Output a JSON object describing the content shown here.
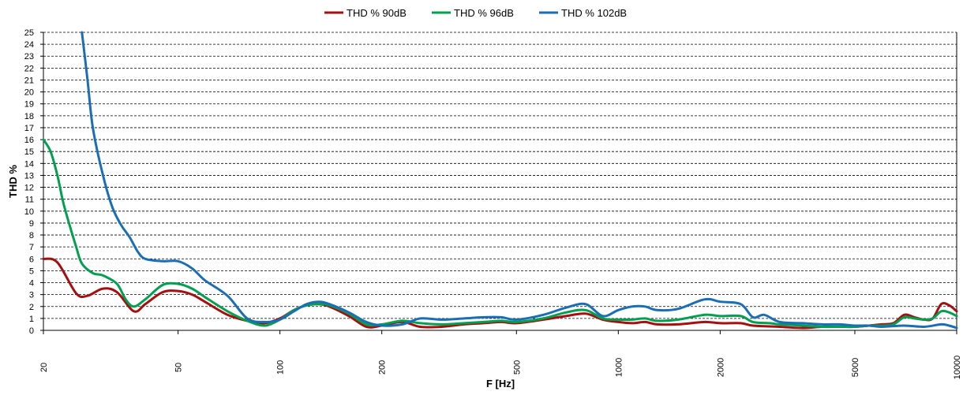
{
  "chart_data": {
    "type": "line",
    "title": "",
    "xlabel": "F [Hz]",
    "ylabel": "THD %",
    "xscale": "log",
    "xlim": [
      20,
      10000
    ],
    "ylim": [
      0,
      25
    ],
    "yticks": [
      0,
      1,
      2,
      3,
      4,
      5,
      6,
      7,
      8,
      9,
      10,
      11,
      12,
      13,
      14,
      15,
      16,
      17,
      18,
      19,
      20,
      21,
      22,
      23,
      24,
      25
    ],
    "xticks": [
      20,
      50,
      100,
      200,
      500,
      1000,
      2000,
      5000,
      10000
    ],
    "grid": true,
    "legend_position": "top",
    "series": [
      {
        "name": "THD % 90dB",
        "color": "#a50f0f",
        "points": [
          [
            20,
            6.0
          ],
          [
            22,
            5.7
          ],
          [
            25,
            3.1
          ],
          [
            27,
            2.9
          ],
          [
            30,
            3.5
          ],
          [
            33,
            3.2
          ],
          [
            37,
            1.6
          ],
          [
            40,
            2.2
          ],
          [
            45,
            3.2
          ],
          [
            50,
            3.3
          ],
          [
            55,
            3.0
          ],
          [
            60,
            2.4
          ],
          [
            70,
            1.3
          ],
          [
            80,
            0.8
          ],
          [
            90,
            0.6
          ],
          [
            100,
            1.0
          ],
          [
            110,
            1.7
          ],
          [
            120,
            2.1
          ],
          [
            130,
            2.2
          ],
          [
            140,
            2.0
          ],
          [
            160,
            1.2
          ],
          [
            180,
            0.3
          ],
          [
            200,
            0.4
          ],
          [
            230,
            0.7
          ],
          [
            260,
            0.3
          ],
          [
            300,
            0.3
          ],
          [
            350,
            0.5
          ],
          [
            400,
            0.6
          ],
          [
            450,
            0.7
          ],
          [
            500,
            0.6
          ],
          [
            600,
            0.9
          ],
          [
            700,
            1.2
          ],
          [
            800,
            1.4
          ],
          [
            900,
            0.9
          ],
          [
            1000,
            0.7
          ],
          [
            1100,
            0.6
          ],
          [
            1200,
            0.7
          ],
          [
            1300,
            0.5
          ],
          [
            1500,
            0.5
          ],
          [
            1800,
            0.7
          ],
          [
            2000,
            0.6
          ],
          [
            2300,
            0.6
          ],
          [
            2500,
            0.4
          ],
          [
            3000,
            0.3
          ],
          [
            3500,
            0.2
          ],
          [
            4000,
            0.3
          ],
          [
            4500,
            0.3
          ],
          [
            5000,
            0.3
          ],
          [
            5500,
            0.4
          ],
          [
            6000,
            0.5
          ],
          [
            6500,
            0.6
          ],
          [
            7000,
            1.3
          ],
          [
            7500,
            1.1
          ],
          [
            8000,
            0.9
          ],
          [
            8500,
            1.0
          ],
          [
            9000,
            2.2
          ],
          [
            9500,
            2.1
          ],
          [
            10000,
            1.6
          ]
        ]
      },
      {
        "name": "THD % 96dB",
        "color": "#00a050",
        "points": [
          [
            20,
            16.0
          ],
          [
            21,
            15.0
          ],
          [
            22,
            13.0
          ],
          [
            23,
            10.5
          ],
          [
            25,
            7.0
          ],
          [
            26,
            5.6
          ],
          [
            28,
            4.8
          ],
          [
            30,
            4.6
          ],
          [
            33,
            3.9
          ],
          [
            35,
            2.6
          ],
          [
            37,
            2.0
          ],
          [
            40,
            2.6
          ],
          [
            45,
            3.8
          ],
          [
            50,
            3.9
          ],
          [
            55,
            3.5
          ],
          [
            60,
            2.8
          ],
          [
            70,
            1.6
          ],
          [
            80,
            0.8
          ],
          [
            90,
            0.4
          ],
          [
            100,
            0.9
          ],
          [
            110,
            1.7
          ],
          [
            120,
            2.1
          ],
          [
            130,
            2.2
          ],
          [
            140,
            2.1
          ],
          [
            160,
            1.4
          ],
          [
            180,
            0.5
          ],
          [
            200,
            0.5
          ],
          [
            230,
            0.8
          ],
          [
            260,
            0.6
          ],
          [
            300,
            0.5
          ],
          [
            350,
            0.6
          ],
          [
            400,
            0.7
          ],
          [
            450,
            0.8
          ],
          [
            500,
            0.7
          ],
          [
            600,
            1.0
          ],
          [
            700,
            1.5
          ],
          [
            800,
            1.7
          ],
          [
            900,
            1.0
          ],
          [
            1000,
            0.9
          ],
          [
            1100,
            0.9
          ],
          [
            1200,
            1.0
          ],
          [
            1300,
            0.8
          ],
          [
            1500,
            0.9
          ],
          [
            1800,
            1.3
          ],
          [
            2000,
            1.2
          ],
          [
            2300,
            1.2
          ],
          [
            2500,
            0.7
          ],
          [
            2800,
            0.6
          ],
          [
            3000,
            0.5
          ],
          [
            3500,
            0.4
          ],
          [
            4000,
            0.3
          ],
          [
            4500,
            0.3
          ],
          [
            5000,
            0.3
          ],
          [
            5500,
            0.4
          ],
          [
            6000,
            0.4
          ],
          [
            6500,
            0.5
          ],
          [
            7000,
            1.1
          ],
          [
            7500,
            1.0
          ],
          [
            8000,
            0.9
          ],
          [
            8500,
            1.0
          ],
          [
            9000,
            1.6
          ],
          [
            9500,
            1.5
          ],
          [
            10000,
            1.2
          ]
        ]
      },
      {
        "name": "THD % 102dB",
        "color": "#1a6eb5",
        "points": [
          [
            26,
            25.0
          ],
          [
            27,
            21.0
          ],
          [
            28,
            17.0
          ],
          [
            30,
            13.0
          ],
          [
            32,
            10.3
          ],
          [
            34,
            8.8
          ],
          [
            36,
            7.8
          ],
          [
            38,
            6.6
          ],
          [
            40,
            6.0
          ],
          [
            45,
            5.8
          ],
          [
            50,
            5.8
          ],
          [
            55,
            5.2
          ],
          [
            60,
            4.2
          ],
          [
            70,
            2.9
          ],
          [
            80,
            1.0
          ],
          [
            90,
            0.7
          ],
          [
            100,
            0.9
          ],
          [
            110,
            1.6
          ],
          [
            120,
            2.2
          ],
          [
            130,
            2.4
          ],
          [
            140,
            2.2
          ],
          [
            160,
            1.5
          ],
          [
            180,
            0.7
          ],
          [
            200,
            0.4
          ],
          [
            230,
            0.5
          ],
          [
            260,
            1.0
          ],
          [
            300,
            0.9
          ],
          [
            350,
            1.0
          ],
          [
            400,
            1.1
          ],
          [
            450,
            1.1
          ],
          [
            500,
            0.9
          ],
          [
            600,
            1.3
          ],
          [
            700,
            1.9
          ],
          [
            800,
            2.2
          ],
          [
            900,
            1.2
          ],
          [
            1000,
            1.7
          ],
          [
            1100,
            2.0
          ],
          [
            1200,
            2.0
          ],
          [
            1300,
            1.7
          ],
          [
            1500,
            1.8
          ],
          [
            1800,
            2.6
          ],
          [
            2000,
            2.4
          ],
          [
            2300,
            2.2
          ],
          [
            2500,
            1.1
          ],
          [
            2700,
            1.3
          ],
          [
            3000,
            0.7
          ],
          [
            3500,
            0.6
          ],
          [
            4000,
            0.5
          ],
          [
            4500,
            0.5
          ],
          [
            5000,
            0.4
          ],
          [
            5500,
            0.4
          ],
          [
            6000,
            0.3
          ],
          [
            7000,
            0.4
          ],
          [
            8000,
            0.3
          ],
          [
            9000,
            0.5
          ],
          [
            9500,
            0.4
          ],
          [
            10000,
            0.2
          ]
        ]
      }
    ]
  }
}
